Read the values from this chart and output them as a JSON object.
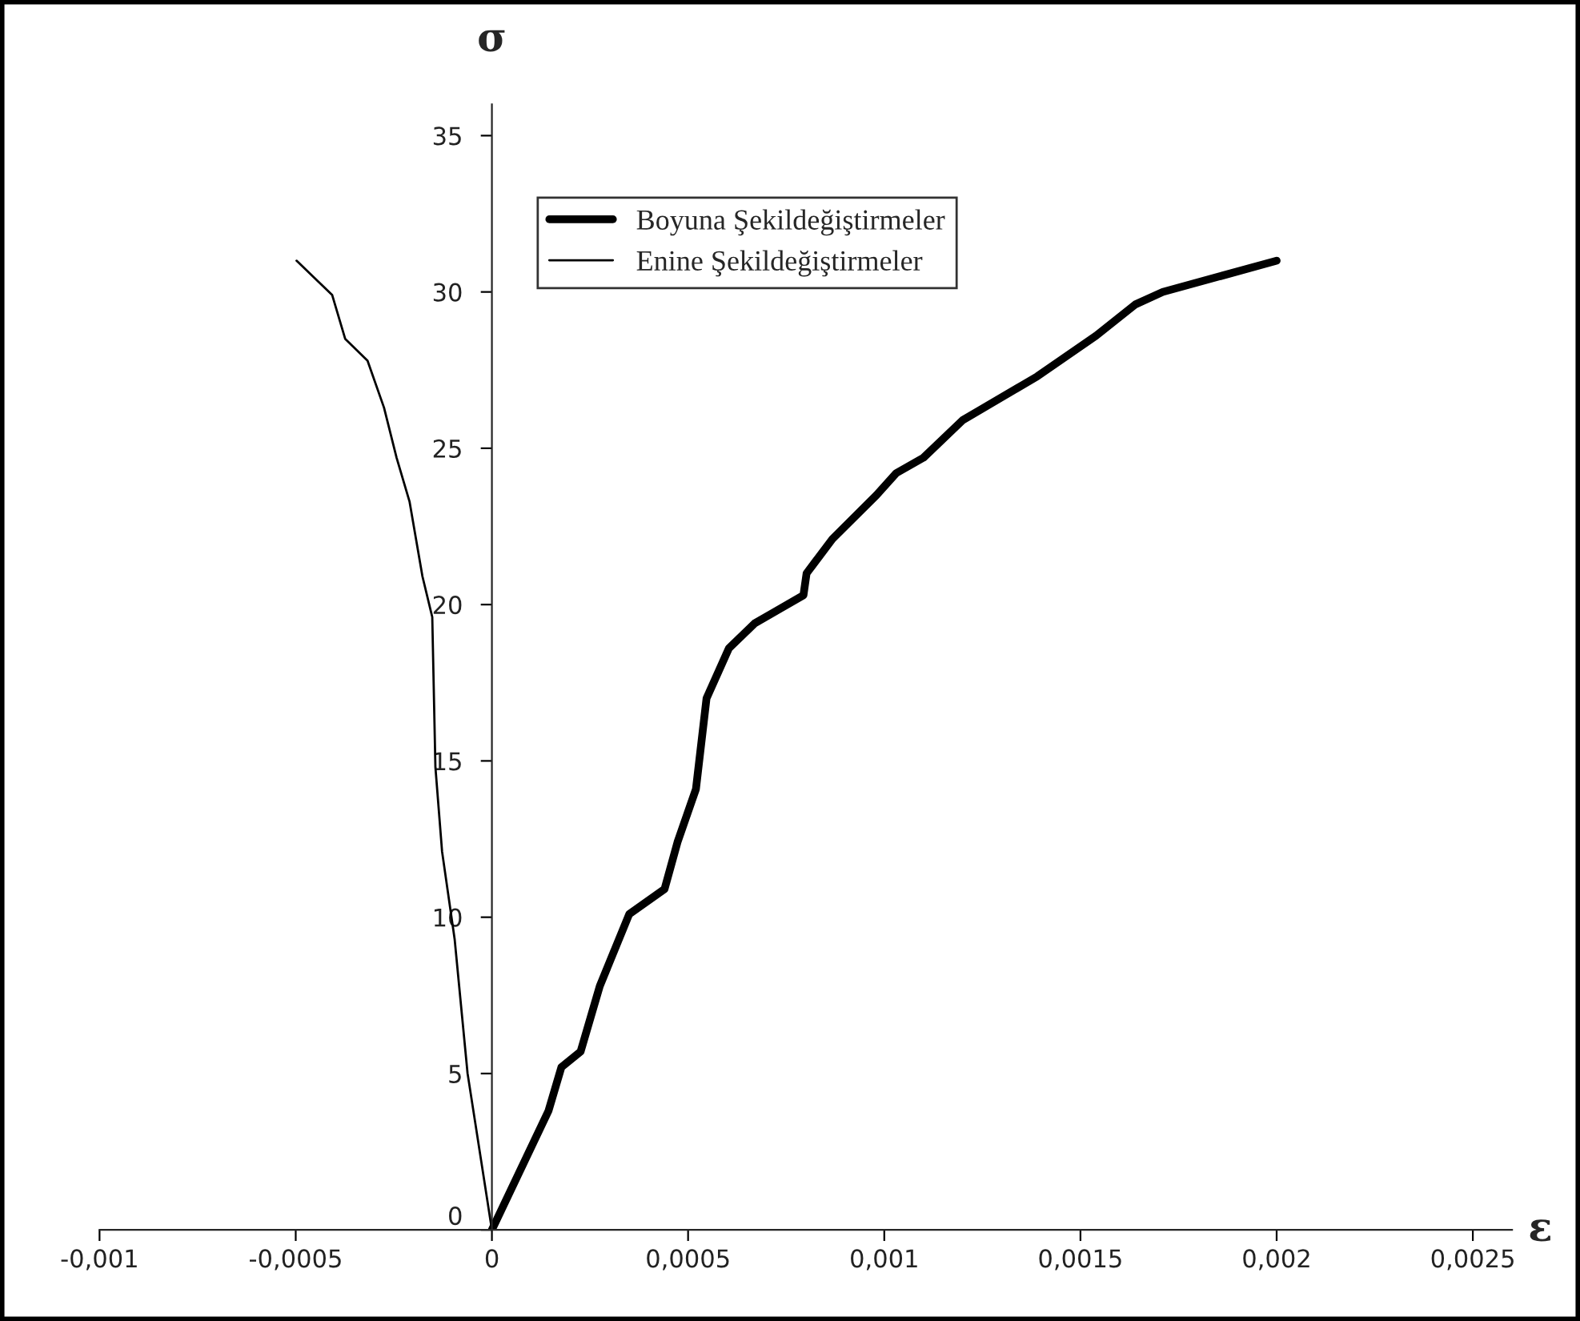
{
  "chart_data": {
    "type": "line",
    "xlabel": "ε",
    "ylabel": "σ",
    "xlim": [
      -0.001,
      0.0026
    ],
    "ylim": [
      0,
      36
    ],
    "xticks": [
      {
        "value": -0.001,
        "label": "-0,001"
      },
      {
        "value": -0.0005,
        "label": "-0,0005"
      },
      {
        "value": 0,
        "label": "0"
      },
      {
        "value": 0.0005,
        "label": "0,0005"
      },
      {
        "value": 0.001,
        "label": "0,001"
      },
      {
        "value": 0.0015,
        "label": "0,0015"
      },
      {
        "value": 0.002,
        "label": "0,002"
      },
      {
        "value": 0.0025,
        "label": "0,0025"
      }
    ],
    "yticks": [
      0,
      5,
      10,
      15,
      20,
      25,
      30,
      35
    ],
    "grid": false,
    "legend": "top left",
    "marker": "none",
    "line_style": "solid",
    "series": [
      {
        "name": "Boyuna Şekildeğiştirmeler",
        "color": "#000000",
        "x": [
          0,
          0.000144,
          0.000177,
          0.000226,
          0.000275,
          0.00035,
          0.00044,
          0.000473,
          0.00052,
          0.000547,
          0.000604,
          0.00067,
          0.000794,
          0.000802,
          0.000868,
          0.00098,
          0.00103,
          0.0011,
          0.0012,
          0.00139,
          0.00154,
          0.00164,
          0.00171,
          0.002
        ],
        "values": [
          0,
          3.8,
          5.2,
          5.7,
          7.8,
          10.1,
          10.9,
          12.4,
          14.1,
          17.0,
          18.6,
          19.4,
          20.3,
          21.0,
          22.1,
          23.5,
          24.2,
          24.7,
          25.9,
          27.3,
          28.6,
          29.6,
          30.0,
          31.0
        ]
      },
      {
        "name": "Enine Şekildeğiştirmeler",
        "color": "#000000",
        "x": [
          0,
          -6.2e-05,
          -9.5e-05,
          -0.000127,
          -0.000144,
          -0.000152,
          -0.000177,
          -0.00021,
          -0.000243,
          -0.000275,
          -0.000317,
          -0.000374,
          -0.000407,
          -0.000498
        ],
        "values": [
          0,
          5.0,
          9.3,
          12.1,
          14.8,
          19.6,
          20.9,
          23.3,
          24.7,
          26.3,
          27.8,
          28.5,
          29.9,
          31.0
        ]
      }
    ]
  }
}
